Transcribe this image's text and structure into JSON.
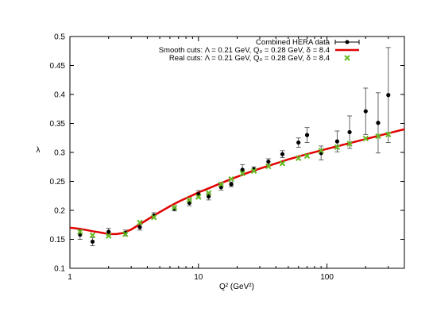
{
  "chart_data": {
    "type": "scatter",
    "xlabel": "Q² (GeV²)",
    "ylabel": "λ",
    "x_scale": "log",
    "xlim": [
      1,
      400
    ],
    "ylim": [
      0.1,
      0.5
    ],
    "xticks": [
      1,
      10,
      100
    ],
    "yticks": [
      0.1,
      0.15,
      0.2,
      0.25,
      0.3,
      0.35,
      0.4,
      0.45,
      0.5
    ],
    "grid": false,
    "legend_position": "top-right",
    "series": [
      {
        "name": "Combined HERA data",
        "kind": "points-with-errorbars",
        "color": "#000000",
        "x": [
          1.2,
          1.5,
          2.0,
          2.7,
          3.5,
          4.5,
          6.5,
          8.5,
          10,
          12,
          15,
          18,
          22,
          27,
          35,
          45,
          60,
          70,
          90,
          120,
          150,
          200,
          250,
          300
        ],
        "y": [
          0.158,
          0.146,
          0.163,
          0.161,
          0.171,
          0.191,
          0.203,
          0.213,
          0.228,
          0.224,
          0.24,
          0.245,
          0.27,
          0.271,
          0.284,
          0.297,
          0.317,
          0.33,
          0.299,
          0.319,
          0.335,
          0.371,
          0.351,
          0.399
        ],
        "err": [
          0.008,
          0.007,
          0.006,
          0.005,
          0.005,
          0.005,
          0.004,
          0.005,
          0.006,
          0.006,
          0.005,
          0.004,
          0.009,
          0.004,
          0.005,
          0.006,
          0.008,
          0.013,
          0.012,
          0.018,
          0.028,
          0.04,
          0.052,
          0.082
        ]
      },
      {
        "name": "Smooth cuts: Λ = 0.21 GeV, Q₀ = 0.28 GeV, δ = 8.4",
        "kind": "line",
        "color": "#e00000",
        "x": [
          1,
          1.1,
          1.2,
          1.35,
          1.5,
          1.7,
          2.0,
          2.3,
          2.6,
          3.0,
          3.5,
          4.0,
          4.5,
          5.0,
          6.0,
          7.0,
          8.0,
          9.0,
          10,
          12,
          15,
          20,
          25,
          30,
          40,
          50,
          70,
          100,
          150,
          200,
          300,
          400
        ],
        "y": [
          0.17,
          0.169,
          0.168,
          0.166,
          0.164,
          0.162,
          0.159,
          0.159,
          0.161,
          0.167,
          0.176,
          0.184,
          0.191,
          0.197,
          0.207,
          0.215,
          0.221,
          0.226,
          0.231,
          0.238,
          0.247,
          0.258,
          0.266,
          0.272,
          0.281,
          0.288,
          0.297,
          0.306,
          0.316,
          0.323,
          0.333,
          0.34
        ]
      },
      {
        "name": "Real cuts: Λ = 0.21 GeV, Q₀ = 0.28 GeV, δ = 8.4",
        "kind": "points-cross",
        "color": "#66bb22",
        "x": [
          1.2,
          1.5,
          2.0,
          2.7,
          3.5,
          4.5,
          6.5,
          8.5,
          10,
          12,
          15,
          18,
          22,
          27,
          35,
          45,
          60,
          70,
          90,
          120,
          150,
          200,
          250,
          300
        ],
        "y": [
          0.163,
          0.157,
          0.156,
          0.159,
          0.179,
          0.188,
          0.205,
          0.218,
          0.223,
          0.23,
          0.245,
          0.254,
          0.264,
          0.268,
          0.276,
          0.281,
          0.29,
          0.294,
          0.303,
          0.309,
          0.315,
          0.324,
          0.328,
          0.331
        ]
      }
    ]
  }
}
